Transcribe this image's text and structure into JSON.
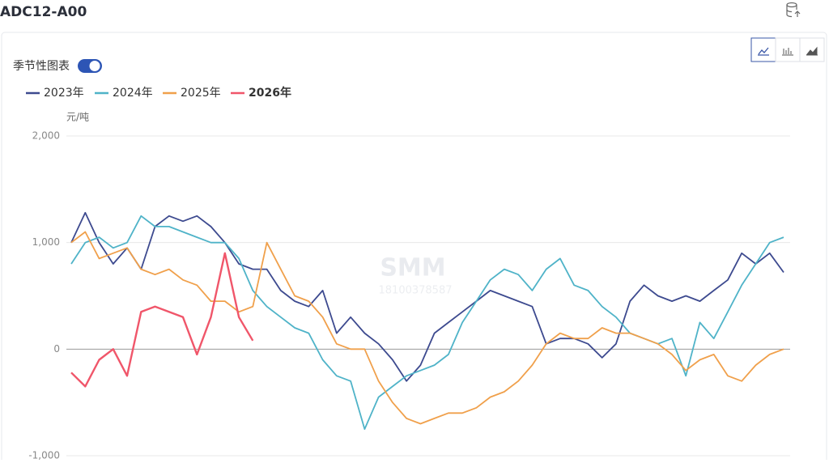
{
  "header": {
    "title": "ADC12-A00"
  },
  "toggle": {
    "label": "季节性图表"
  },
  "watermark": {
    "logo": "SMM",
    "phone": "18100378587"
  },
  "chart_data": {
    "type": "line",
    "y_label": "元/吨",
    "categories": [
      null,
      null,
      null,
      null,
      null,
      null,
      null,
      null,
      null,
      null,
      null,
      null,
      null,
      null,
      null,
      null,
      null,
      null,
      null,
      null,
      null,
      null,
      null,
      null,
      null,
      null,
      null,
      null,
      null,
      null,
      null,
      null,
      null,
      null,
      null,
      null,
      null,
      null,
      null,
      null,
      null,
      null,
      null,
      null,
      null,
      null,
      null,
      null,
      null,
      null,
      null,
      null
    ],
    "ylim": [
      -1000,
      2000
    ],
    "yticks": [
      {
        "value": -1000,
        "label": "-1,000"
      },
      0,
      {
        "value": 1000,
        "label": "1,000"
      },
      {
        "value": 2000,
        "label": "2,000"
      }
    ],
    "grid": true,
    "series": [
      {
        "name": "2023年",
        "color": "#3d4a8f",
        "values": [
          1000,
          1280,
          1000,
          800,
          950,
          750,
          1150,
          1250,
          1200,
          1250,
          1150,
          1000,
          800,
          750,
          750,
          550,
          450,
          400,
          550,
          150,
          300,
          150,
          50,
          -100,
          -300,
          -150,
          150,
          250,
          350,
          450,
          550,
          500,
          450,
          400,
          50,
          100,
          100,
          50,
          -80,
          50,
          450,
          600,
          500,
          450,
          500,
          450,
          550,
          650,
          900,
          800,
          900,
          720
        ]
      },
      {
        "name": "2024年",
        "color": "#4fb3c8",
        "values": [
          800,
          1000,
          1050,
          950,
          1000,
          1250,
          1150,
          1150,
          1100,
          1050,
          1000,
          1000,
          850,
          550,
          400,
          300,
          200,
          150,
          -100,
          -250,
          -300,
          -750,
          -450,
          -350,
          -250,
          -200,
          -150,
          -50,
          250,
          450,
          650,
          750,
          700,
          550,
          750,
          850,
          600,
          550,
          400,
          300,
          150,
          100,
          50,
          100,
          -250,
          250,
          100,
          350,
          600,
          800,
          1000,
          1050
        ]
      },
      {
        "name": "2025年",
        "color": "#f0a04b",
        "values": [
          1000,
          1100,
          850,
          900,
          950,
          750,
          700,
          750,
          650,
          600,
          450,
          450,
          350,
          400,
          1000,
          750,
          500,
          450,
          300,
          50,
          0,
          0,
          -300,
          -500,
          -650,
          -700,
          -650,
          -600,
          -600,
          -550,
          -450,
          -400,
          -300,
          -150,
          50,
          150,
          100,
          100,
          200,
          150,
          150,
          100,
          50,
          -50,
          -200,
          -100,
          -50,
          -250,
          -300,
          -150,
          -50,
          0
        ]
      },
      {
        "name": "2026年",
        "color": "#f0566a",
        "values": [
          -220,
          -350,
          -100,
          0,
          -250,
          350,
          400,
          350,
          300,
          -50,
          300,
          900,
          300,
          80,
          null,
          null,
          null,
          null,
          null,
          null,
          null,
          null,
          null,
          null,
          null,
          null,
          null,
          null,
          null,
          null,
          null,
          null,
          null,
          null,
          null,
          null,
          null,
          null,
          null,
          null,
          null,
          null,
          null,
          null,
          null,
          null,
          null,
          null,
          null,
          null,
          null,
          null
        ]
      }
    ]
  }
}
